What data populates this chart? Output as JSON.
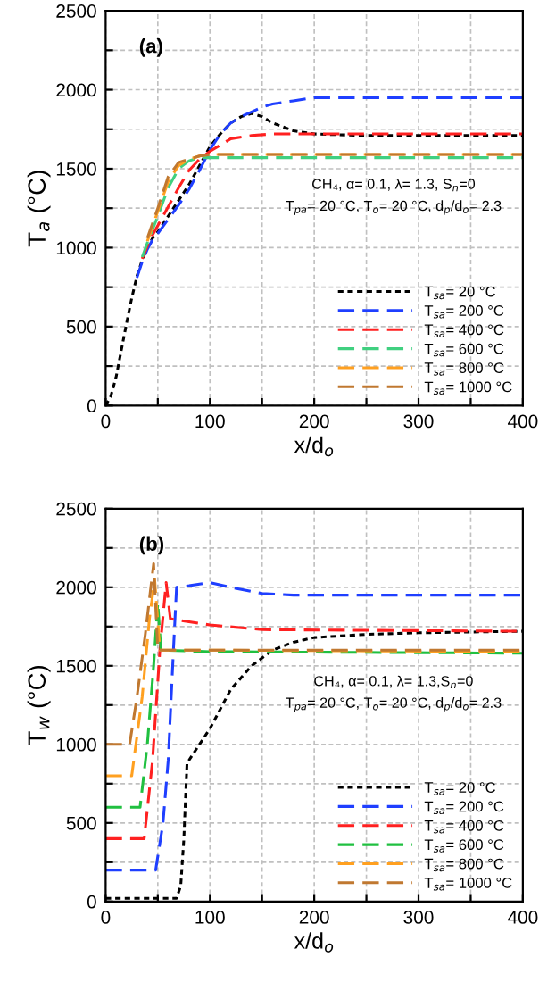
{
  "chart_data": [
    {
      "type": "line",
      "xlabel": "x/d$_{o}$",
      "ylabel": "T$_{a}$ (°C)",
      "xlim": [
        0,
        400
      ],
      "ylim": [
        0,
        2500
      ],
      "xticks": [
        0,
        {
          "value": 50,
          "label": null
        },
        100,
        {
          "value": 150,
          "label": null
        },
        200,
        {
          "value": 250,
          "label": null
        },
        300,
        {
          "value": 350,
          "label": null
        },
        400
      ],
      "yticks": [
        0,
        {
          "value": 250,
          "label": null
        },
        500,
        {
          "value": 750,
          "label": null
        },
        1000,
        {
          "value": 1250,
          "label": null
        },
        1500,
        {
          "value": 1750,
          "label": null
        },
        2000,
        {
          "value": 2250,
          "label": null
        },
        2500
      ],
      "grid": true,
      "legend": "bottom right",
      "annotations": [
        "(a)",
        "CH₄, α= 0.1, λ= 1.3, S$_{n}$=0",
        "T$_{pa}$= 20 °C, T$_{o}$= 20 °C, d$_{p}$/d$_{o}$= 2.3"
      ],
      "series": [
        {
          "name": "T$_{sa}$= 20 °C",
          "color": "#000000",
          "line_style": "dotted",
          "x": [
            0,
            5,
            10,
            15,
            20,
            25,
            30,
            35,
            40,
            45,
            50,
            60,
            70,
            80,
            90,
            100,
            110,
            120,
            130,
            140,
            150,
            160,
            180,
            200,
            250,
            300,
            400
          ],
          "values": [
            0,
            60,
            180,
            350,
            520,
            680,
            820,
            920,
            1000,
            1060,
            1100,
            1200,
            1300,
            1400,
            1520,
            1640,
            1720,
            1790,
            1830,
            1850,
            1830,
            1790,
            1740,
            1720,
            1710,
            1710,
            1710
          ]
        },
        {
          "name": "T$_{sa}$= 200 °C",
          "color": "#1f3fff",
          "line_style": "dashed",
          "x": [
            30,
            35,
            40,
            45,
            50,
            60,
            70,
            80,
            90,
            100,
            110,
            120,
            130,
            140,
            150,
            160,
            180,
            200,
            250,
            300,
            400
          ],
          "values": [
            810,
            910,
            990,
            1050,
            1090,
            1180,
            1270,
            1370,
            1490,
            1620,
            1720,
            1790,
            1830,
            1860,
            1890,
            1910,
            1930,
            1950,
            1950,
            1950,
            1950
          ]
        },
        {
          "name": "T$_{sa}$= 400 °C",
          "color": "#ff2020",
          "line_style": "dashed",
          "x": [
            35,
            40,
            45,
            50,
            60,
            70,
            80,
            90,
            100,
            110,
            120,
            140,
            160,
            200,
            400
          ],
          "values": [
            930,
            1010,
            1080,
            1140,
            1260,
            1380,
            1490,
            1560,
            1610,
            1650,
            1690,
            1710,
            1720,
            1720,
            1720
          ]
        },
        {
          "name": "T$_{sa}$= 600 °C",
          "color": "#40d080",
          "line_style": "dashed",
          "x": [
            35,
            40,
            50,
            60,
            70,
            80,
            90,
            100,
            400
          ],
          "values": [
            940,
            1030,
            1200,
            1380,
            1500,
            1550,
            1570,
            1570,
            1570
          ]
        },
        {
          "name": "T$_{sa}$= 800 °C",
          "color": "#ffa020",
          "line_style": "dashed",
          "x": [
            40,
            50,
            60,
            70,
            80,
            90,
            100,
            400
          ],
          "values": [
            1040,
            1230,
            1420,
            1520,
            1560,
            1580,
            1590,
            1590
          ]
        },
        {
          "name": "T$_{sa}$= 1000 °C",
          "color": "#c07830",
          "line_style": "dashed",
          "x": [
            40,
            50,
            60,
            70,
            80,
            90,
            100,
            400
          ],
          "values": [
            1060,
            1250,
            1450,
            1540,
            1560,
            1580,
            1590,
            1590
          ]
        }
      ]
    },
    {
      "type": "line",
      "xlabel": "x/d$_{o}$",
      "ylabel": "T$_{w}$ (°C)",
      "xlim": [
        0,
        400
      ],
      "ylim": [
        0,
        2500
      ],
      "xticks": [
        0,
        {
          "value": 50,
          "label": null
        },
        100,
        {
          "value": 150,
          "label": null
        },
        200,
        {
          "value": 250,
          "label": null
        },
        300,
        {
          "value": 350,
          "label": null
        },
        400
      ],
      "yticks": [
        0,
        {
          "value": 250,
          "label": null
        },
        500,
        {
          "value": 750,
          "label": null
        },
        1000,
        {
          "value": 1250,
          "label": null
        },
        1500,
        {
          "value": 1750,
          "label": null
        },
        2000,
        {
          "value": 2250,
          "label": null
        },
        2500
      ],
      "grid": true,
      "legend": "bottom right",
      "annotations": [
        "(b)",
        "CH₄, α= 0.1, λ= 1.3,S$_{n}$=0",
        "T$_{pa}$= 20 °C, T$_{o}$= 20 °C, d$_{p}$/d$_{o}$= 2.3"
      ],
      "series": [
        {
          "name": "T$_{sa}$= 20 °C",
          "color": "#000000",
          "line_style": "dotted",
          "x": [
            0,
            68,
            72,
            75,
            78,
            85,
            100,
            120,
            140,
            160,
            180,
            200,
            250,
            300,
            400
          ],
          "values": [
            20,
            20,
            100,
            400,
            880,
            950,
            1100,
            1350,
            1500,
            1600,
            1650,
            1680,
            1700,
            1710,
            1720
          ]
        },
        {
          "name": "T$_{sa}$= 200 °C",
          "color": "#1f3fff",
          "line_style": "dashed",
          "x": [
            0,
            48,
            55,
            60,
            65,
            68,
            80,
            100,
            120,
            150,
            180,
            400
          ],
          "values": [
            200,
            200,
            500,
            900,
            1600,
            2000,
            2010,
            2030,
            2000,
            1960,
            1950,
            1950
          ]
        },
        {
          "name": "T$_{sa}$= 400 °C",
          "color": "#ff2020",
          "line_style": "dashed",
          "x": [
            0,
            37,
            45,
            52,
            58,
            62,
            80,
            100,
            150,
            400
          ],
          "values": [
            400,
            400,
            900,
            1600,
            2030,
            1800,
            1780,
            1760,
            1730,
            1720
          ]
        },
        {
          "name": "T$_{sa}$= 600 °C",
          "color": "#20c040",
          "line_style": "dashed",
          "x": [
            0,
            33,
            40,
            46,
            50,
            53,
            100,
            400
          ],
          "values": [
            600,
            600,
            1000,
            1500,
            1900,
            1600,
            1590,
            1580
          ]
        },
        {
          "name": "T$_{sa}$= 800 °C",
          "color": "#ffa020",
          "line_style": "dashed",
          "x": [
            0,
            25,
            35,
            42,
            47,
            52,
            100,
            400
          ],
          "values": [
            800,
            800,
            1300,
            1800,
            2050,
            1600,
            1600,
            1590
          ]
        },
        {
          "name": "T$_{sa}$= 1000 °C",
          "color": "#c07830",
          "line_style": "dashed",
          "x": [
            0,
            23,
            30,
            38,
            46,
            50,
            100,
            400
          ],
          "values": [
            1000,
            1000,
            1300,
            1700,
            2150,
            1600,
            1600,
            1600
          ]
        }
      ]
    }
  ]
}
